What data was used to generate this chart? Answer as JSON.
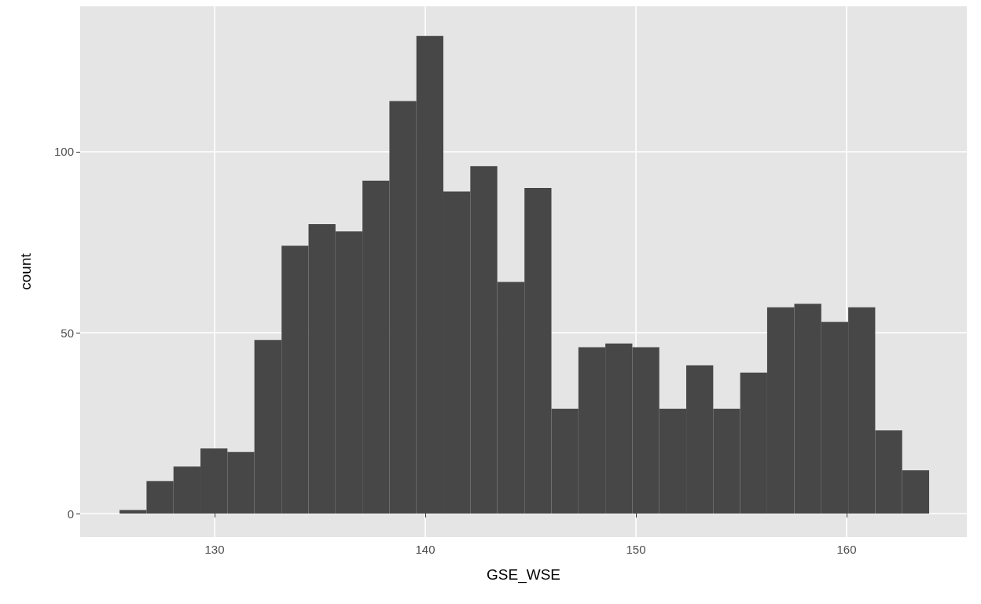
{
  "chart_data": {
    "type": "histogram",
    "xlabel": "GSE_WSE",
    "ylabel": "count",
    "color": "#474747",
    "bins": [
      125.49,
      126.77,
      128.05,
      129.33,
      130.61,
      131.89,
      133.18,
      134.46,
      135.74,
      137.02,
      138.3,
      139.58,
      140.86,
      142.14,
      143.42,
      144.71,
      145.99,
      147.27,
      148.55,
      149.83,
      151.11,
      152.39,
      153.67,
      154.95,
      156.23,
      157.52,
      158.8,
      160.08,
      161.36,
      162.64,
      163.92
    ],
    "values": [
      1,
      9,
      13,
      18,
      17,
      48,
      74,
      80,
      78,
      92,
      114,
      132,
      89,
      96,
      64,
      90,
      29,
      46,
      47,
      46,
      29,
      41,
      29,
      39,
      57,
      58,
      53,
      57,
      23,
      12
    ],
    "xlim": [
      123.62,
      165.71
    ],
    "ylim": [
      -6.5,
      140.2
    ],
    "xticks": [
      130,
      140,
      150,
      160
    ],
    "yticks": [
      0,
      50,
      100
    ],
    "grid": true
  }
}
